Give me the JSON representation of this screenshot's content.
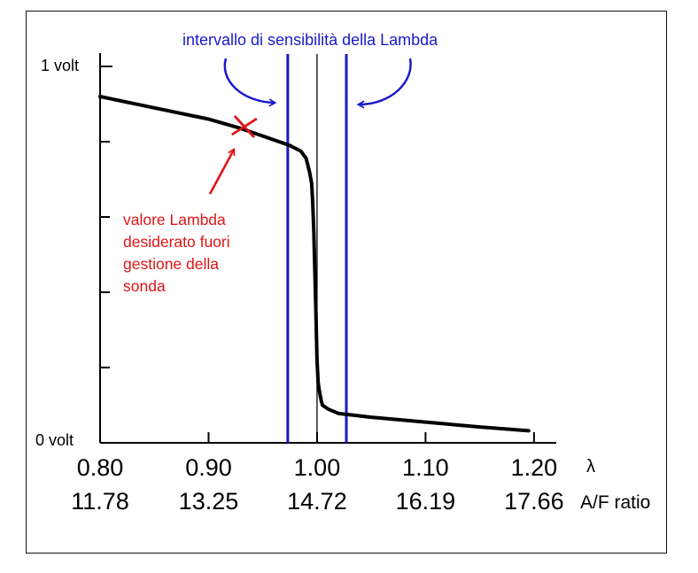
{
  "chart_data": {
    "type": "line",
    "x_lambda_ticks": [
      "0.80",
      "0.90",
      "1.00",
      "1.10",
      "1.20"
    ],
    "x_af_ticks": [
      "11.78",
      "13.25",
      "14.72",
      "16.19",
      "17.66"
    ],
    "x_lambda_values": [
      0.8,
      0.9,
      1.0,
      1.1,
      1.2
    ],
    "x_unit_lambda": "λ",
    "x_unit_af": "A/F ratio",
    "y_top_label": "1 volt",
    "y_bottom_label": "0 volt",
    "xlim": [
      0.8,
      1.205
    ],
    "ylim": [
      0,
      1
    ],
    "y_minor_ticks": [
      0.2,
      0.4,
      0.6,
      0.8
    ],
    "series": [
      {
        "x": [
          0.8,
          0.85,
          0.9,
          0.93,
          0.96,
          0.975,
          0.985,
          0.99,
          0.993,
          0.995,
          0.996,
          0.997,
          0.998,
          0.999,
          1.0,
          1.001,
          1.002,
          1.003,
          1.004,
          1.005,
          1.01,
          1.02,
          1.05,
          1.1,
          1.15,
          1.195
        ],
        "y": [
          0.92,
          0.89,
          0.86,
          0.835,
          0.805,
          0.79,
          0.775,
          0.755,
          0.72,
          0.69,
          0.64,
          0.56,
          0.45,
          0.34,
          0.22,
          0.16,
          0.14,
          0.125,
          0.11,
          0.1,
          0.09,
          0.078,
          0.068,
          0.055,
          0.042,
          0.032
        ]
      }
    ],
    "sensitivity_bounds": [
      0.973,
      1.027
    ],
    "stoichiometric_line": 1.0,
    "desired_point": {
      "x": 0.933,
      "y": 0.84
    },
    "annotation_blue": "intervallo di sensibilità della Lambda",
    "annotation_red": [
      "valore Lambda",
      "desiderato fuori",
      "gestione della",
      "sonda"
    ],
    "colors": {
      "curve": "#000000",
      "sensitivity": "#1a1acc",
      "annotation_red": "#e01515",
      "axis": "#000000"
    },
    "grid": false
  }
}
